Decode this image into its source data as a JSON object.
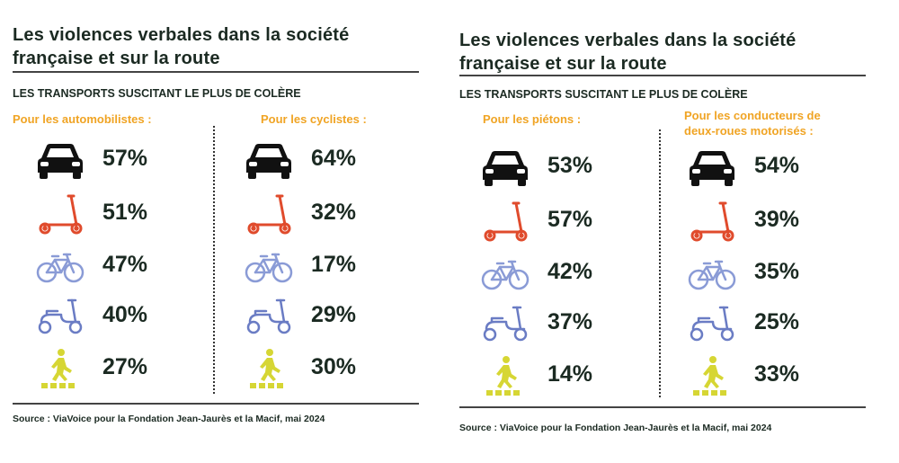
{
  "colors": {
    "orange": "#f0a424",
    "car": "#111111",
    "scooter": "#e04b2c",
    "bicycle": "#8a9bd6",
    "moped": "#6a7cc4",
    "pedestrian": "#d6d634"
  },
  "chart_data": [
    {
      "type": "table",
      "title": "Les violences verbales dans la société française et sur la route",
      "title_lines": [
        "Les violences verbales dans la société",
        "française et sur la route"
      ],
      "subtitle": "LES TRANSPORTS SUSCITANT LE PLUS DE COLÈRE",
      "categories": [
        "car-icon",
        "scooter-icon",
        "bicycle-icon",
        "moped-icon",
        "pedestrian-icon"
      ],
      "series": [
        {
          "name": "Pour les automobilistes :",
          "name_lines": [
            "Pour les automobilistes :"
          ],
          "values": [
            "57%",
            "51%",
            "47%",
            "40%",
            "27%"
          ]
        },
        {
          "name": "Pour les cyclistes :",
          "name_lines": [
            "Pour les cyclistes :"
          ],
          "values": [
            "64%",
            "32%",
            "17%",
            "29%",
            "30%"
          ]
        }
      ],
      "source": "Source : ViaVoice pour la Fondation Jean-Jaurès et la Macif, mai 2024"
    },
    {
      "type": "table",
      "title": "Les violences verbales dans la société française et sur la route",
      "title_lines": [
        "Les violences verbales dans la société",
        "française et sur la route"
      ],
      "subtitle": "LES TRANSPORTS SUSCITANT LE PLUS DE COLÈRE",
      "categories": [
        "car-icon",
        "scooter-icon",
        "bicycle-icon",
        "moped-icon",
        "pedestrian-icon"
      ],
      "series": [
        {
          "name": "Pour les piétons :",
          "name_lines": [
            "Pour les piétons :"
          ],
          "values": [
            "53%",
            "57%",
            "42%",
            "37%",
            "14%"
          ]
        },
        {
          "name": "Pour les conducteurs de deux-roues motorisés :",
          "name_lines": [
            "Pour les conducteurs de",
            "deux-roues motorisés :"
          ],
          "values": [
            "54%",
            "39%",
            "35%",
            "25%",
            "33%"
          ]
        }
      ],
      "source": "Source : ViaVoice pour la Fondation Jean-Jaurès et la Macif, mai 2024"
    }
  ]
}
